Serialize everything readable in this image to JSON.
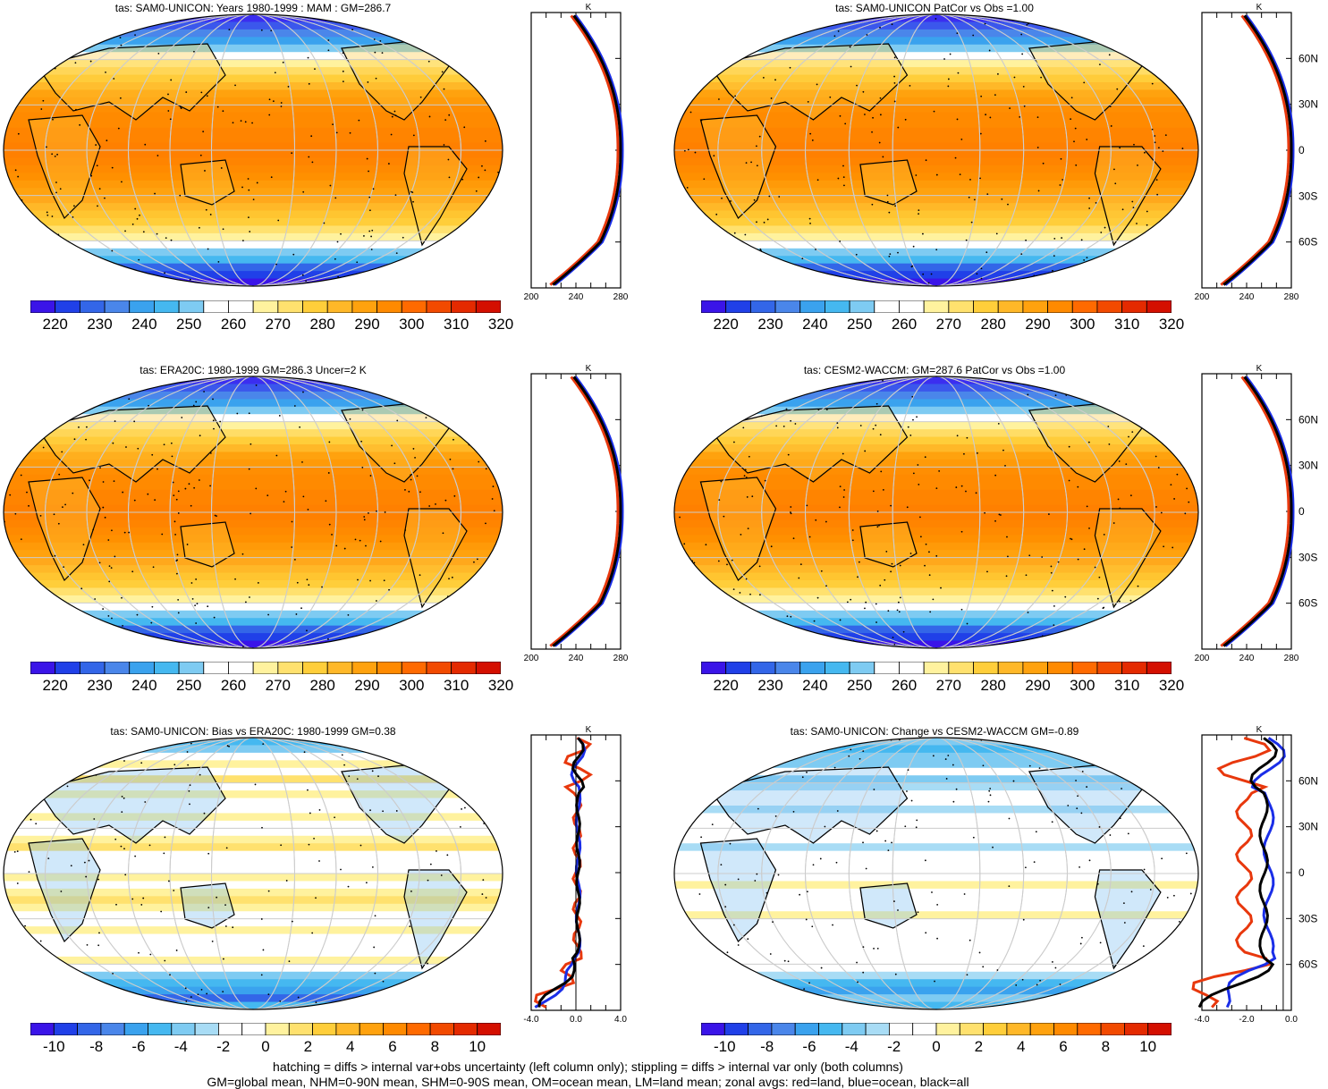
{
  "colors": {
    "scale_abs": [
      "#3a14e8",
      "#2040e8",
      "#3366e8",
      "#4a86ea",
      "#3aa2ee",
      "#45b8f0",
      "#7ecbf2",
      "#ffffff",
      "#ffffff",
      "#fff29e",
      "#ffe16e",
      "#ffce3a",
      "#ffb828",
      "#ffa20e",
      "#ff8a00",
      "#ff6a00",
      "#f24a00",
      "#e42a00",
      "#d40f00"
    ],
    "scale_diff": [
      "#3a14e8",
      "#2040e8",
      "#3366e8",
      "#4a86ea",
      "#3aa2ee",
      "#45b8f0",
      "#7ecbf2",
      "#a8dcf5",
      "#ffffff",
      "#ffffff",
      "#fff29e",
      "#ffe16e",
      "#ffce3a",
      "#ffb828",
      "#ffa20e",
      "#ff8a00",
      "#ff6a00",
      "#f24a00",
      "#e42a00",
      "#d40f00"
    ],
    "land": "#e8380d",
    "ocean": "#1a2ee8",
    "all": "#000000"
  },
  "colorbars": {
    "abs": [
      "220",
      "230",
      "240",
      "250",
      "260",
      "270",
      "280",
      "290",
      "300",
      "310",
      "320"
    ],
    "diff": [
      "-10",
      "-8",
      "-6",
      "-4",
      "-2",
      "0",
      "2",
      "4",
      "6",
      "8",
      "10"
    ]
  },
  "lat_labels": [
    "60N",
    "30N",
    "0",
    "30S",
    "60S"
  ],
  "zonal_unit": "K",
  "panels": [
    {
      "id": "p1",
      "title": "tas: SAM0-UNICON: Years 1980-1999 : MAM : GM=286.7",
      "kind": "abs",
      "zonal_ticks": [
        "200",
        "240",
        "280"
      ],
      "show_lat": false
    },
    {
      "id": "p2",
      "title": "tas: SAM0-UNICON PatCor vs Obs =1.00",
      "kind": "abs",
      "zonal_ticks": [
        "200",
        "240",
        "280"
      ],
      "show_lat": true
    },
    {
      "id": "p3",
      "title": "tas: ERA20C: 1980-1999 GM=286.3 Uncer=2 K",
      "kind": "abs",
      "zonal_ticks": [
        "200",
        "240",
        "280"
      ],
      "show_lat": false
    },
    {
      "id": "p4",
      "title": "tas: CESM2-WACCM: GM=287.6 PatCor vs Obs =1.00",
      "kind": "abs",
      "zonal_ticks": [
        "200",
        "240",
        "280"
      ],
      "show_lat": true
    },
    {
      "id": "p5",
      "title": "tas: SAM0-UNICON: Bias vs ERA20C: 1980-1999 GM=0.38",
      "kind": "diff",
      "zonal_ticks": [
        "-4.0",
        "0.0",
        "4.0"
      ],
      "show_lat": false
    },
    {
      "id": "p6",
      "title": "tas: SAM0-UNICON: Change vs CESM2-WACCM GM=-0.89",
      "kind": "diff",
      "zonal_ticks": [
        "-4.0",
        "-2.0",
        "0.0"
      ],
      "show_lat": true
    }
  ],
  "footer": {
    "line1": "hatching = diffs > internal var+obs uncertainty (left column only); stippling = diffs > internal var only (both columns)",
    "line2": "GM=global mean, NHM=0-90N mean, SHM=0-90S mean, OM=ocean mean, LM=land mean; zonal avgs: red=land, blue=ocean, black=all"
  }
}
